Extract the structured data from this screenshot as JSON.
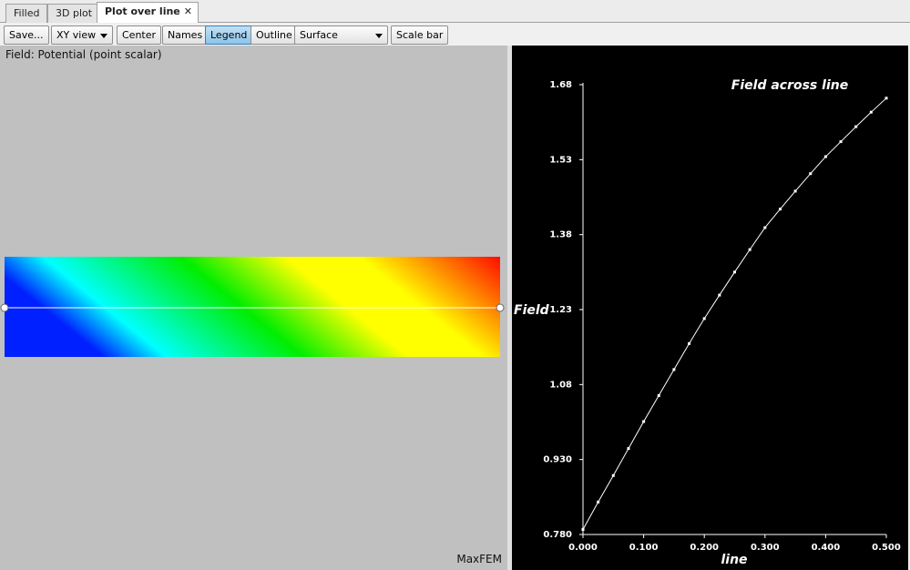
{
  "tabs": [
    "Filled",
    "3D plot",
    "Plot over line"
  ],
  "toolbar": {
    "save": "Save...",
    "view": "XY view",
    "center": "Center",
    "names": "Names",
    "legend": "Legend",
    "outline": "Outline",
    "surface": "Surface",
    "scale_bar": "Scale bar"
  },
  "left_panel": {
    "field_label": "Field: Potential (point scalar)",
    "watermark": "MaxFEM"
  },
  "chart_data": {
    "type": "line",
    "title": "Field across line",
    "x_label": "line",
    "y_label": "Field",
    "x": [
      0,
      0.025,
      0.05,
      0.075,
      0.1,
      0.125,
      0.15,
      0.175,
      0.2,
      0.225,
      0.25,
      0.275,
      0.3,
      0.325,
      0.35,
      0.375,
      0.4,
      0.425,
      0.45,
      0.475,
      0.5
    ],
    "values": [
      0.79,
      0.845,
      0.898,
      0.952,
      1.006,
      1.058,
      1.11,
      1.162,
      1.212,
      1.259,
      1.305,
      1.35,
      1.394,
      1.431,
      1.467,
      1.502,
      1.536,
      1.566,
      1.596,
      1.625,
      1.653
    ],
    "color": "#ffffff",
    "xlim": [
      0,
      0.5
    ],
    "ylim": [
      0.78,
      1.68
    ],
    "xticks": [
      {
        "value": 0,
        "label": "0.000"
      },
      {
        "value": 0.1,
        "label": "0.100"
      },
      {
        "value": 0.2,
        "label": "0.200"
      },
      {
        "value": 0.3,
        "label": "0.300"
      },
      {
        "value": 0.4,
        "label": "0.400"
      },
      {
        "value": 0.5,
        "label": "0.500"
      }
    ],
    "yticks": [
      {
        "value": 0.78,
        "label": "0.780"
      },
      {
        "value": 0.93,
        "label": "0.930"
      },
      1.08,
      1.23,
      1.38,
      1.53,
      1.68
    ]
  }
}
